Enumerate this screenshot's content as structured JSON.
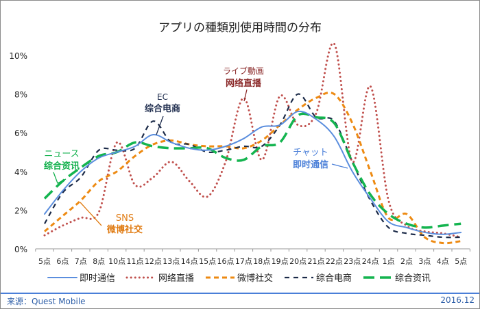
{
  "chart_data": {
    "type": "line",
    "title": "アプリの種類別使用時間の分布",
    "categories": [
      "5点",
      "6点",
      "7点",
      "8点",
      "10点",
      "11点",
      "12点",
      "13点",
      "14点",
      "15点",
      "16点",
      "17点",
      "18点",
      "19点",
      "20点",
      "21点",
      "22点",
      "23点",
      "24点",
      "1点",
      "2点",
      "3点",
      "4点",
      "5点"
    ],
    "yticks": [
      "0%",
      "2%",
      "4%",
      "6%",
      "8%",
      "10%"
    ],
    "ylim": [
      0,
      10
    ],
    "y_unit": "%",
    "grid": false,
    "legend_position": "bottom",
    "series": [
      {
        "name": "即时通信",
        "color": "#5b8ede",
        "style": "solid",
        "values": [
          1.8,
          3.0,
          4.0,
          4.7,
          5.0,
          5.3,
          5.9,
          5.5,
          5.2,
          5.1,
          5.3,
          5.7,
          6.3,
          6.4,
          7.1,
          6.7,
          5.8,
          4.0,
          2.6,
          1.4,
          1.1,
          0.85,
          0.75,
          0.85
        ]
      },
      {
        "name": "网络直播",
        "color": "#c0504d",
        "style": "dotted",
        "values": [
          0.7,
          1.2,
          1.6,
          1.9,
          5.5,
          3.3,
          3.7,
          4.5,
          3.5,
          2.7,
          4.5,
          7.8,
          4.6,
          7.9,
          6.4,
          7.0,
          10.6,
          4.5,
          8.4,
          2.5,
          1.2,
          0.9,
          0.8,
          0.6
        ]
      },
      {
        "name": "微博社交",
        "color": "#ed8a12",
        "style": "dashed",
        "values": [
          0.9,
          1.7,
          2.5,
          3.5,
          4.0,
          4.8,
          5.4,
          5.6,
          5.4,
          5.3,
          5.3,
          5.2,
          5.6,
          6.4,
          7.2,
          7.8,
          8.0,
          6.5,
          4.0,
          1.6,
          1.8,
          0.6,
          0.3,
          0.4
        ]
      },
      {
        "name": "综合电商",
        "color": "#1b2a48",
        "style": "dashed-thin",
        "values": [
          1.3,
          2.9,
          3.7,
          5.1,
          5.1,
          5.2,
          6.6,
          5.5,
          5.4,
          5.0,
          5.1,
          5.3,
          5.3,
          6.4,
          8.0,
          6.8,
          6.6,
          4.5,
          2.5,
          1.1,
          0.8,
          0.7,
          0.6,
          0.6
        ]
      },
      {
        "name": "综合资讯",
        "color": "#14b44f",
        "style": "long-dash",
        "values": [
          2.6,
          3.5,
          4.2,
          4.8,
          5.0,
          5.5,
          5.3,
          5.2,
          5.2,
          5.2,
          4.7,
          4.6,
          5.3,
          5.5,
          6.9,
          6.8,
          6.5,
          4.5,
          2.8,
          1.8,
          1.3,
          1.1,
          1.2,
          1.3
        ]
      }
    ],
    "annotations": [
      {
        "lines": [
          "EC",
          "综合电商"
        ],
        "color": "#1f2d4e"
      },
      {
        "lines": [
          "ライブ動画",
          "网络直播"
        ],
        "color": "#8b2a2a"
      },
      {
        "lines": [
          "ニュース",
          "综合资讯"
        ],
        "color": "#12b04c"
      },
      {
        "lines": [
          "SNS",
          "微博社交"
        ],
        "color": "#e07b12"
      },
      {
        "lines": [
          "チャット",
          "即时通信"
        ],
        "color": "#4a7fd8"
      }
    ]
  },
  "footer": {
    "source": "来源：Quest Mobile",
    "date": "2016.12"
  }
}
